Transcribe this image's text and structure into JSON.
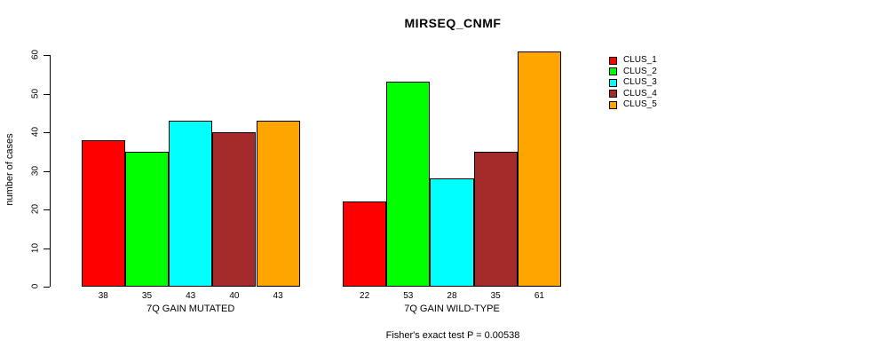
{
  "chart_data": {
    "type": "bar",
    "title": "MIRSEQ_CNMF",
    "xlabel": "",
    "ylabel": "number of cases",
    "ylim": [
      0,
      60
    ],
    "yticks": [
      0,
      10,
      20,
      30,
      40,
      50,
      60
    ],
    "grid": false,
    "legend_position": "top-right",
    "categories": [
      "7Q GAIN MUTATED",
      "7Q GAIN WILD-TYPE"
    ],
    "series": [
      {
        "name": "CLUS_1",
        "color": "#FF0000",
        "values": [
          38,
          22
        ]
      },
      {
        "name": "CLUS_2",
        "color": "#00FF00",
        "values": [
          35,
          53
        ]
      },
      {
        "name": "CLUS_3",
        "color": "#00FFFF",
        "values": [
          43,
          28
        ]
      },
      {
        "name": "CLUS_4",
        "color": "#A52A2A",
        "values": [
          40,
          35
        ]
      },
      {
        "name": "CLUS_5",
        "color": "#FFA500",
        "values": [
          43,
          61
        ]
      }
    ],
    "bar_value_labels": true,
    "annotation": "Fisher's exact test P = 0.00538"
  }
}
